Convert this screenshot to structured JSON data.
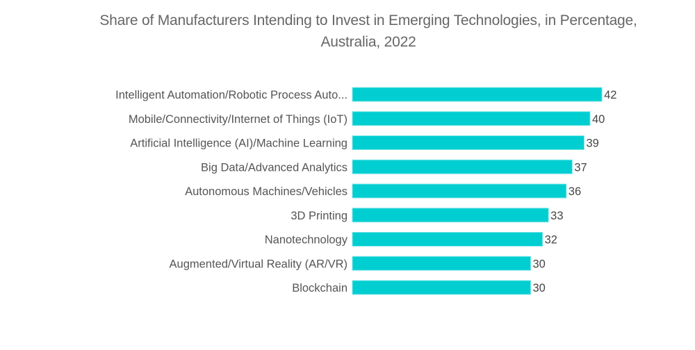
{
  "chart_data": {
    "type": "bar",
    "orientation": "horizontal",
    "title": "Share of Manufacturers Intending to Invest in Emerging Technologies, in Percentage, Australia, 2022",
    "title_lines": [
      "Share of Manufacturers Intending to Invest in Emerging Technologies, in Percentage,",
      "Australia, 2022"
    ],
    "categories": [
      "Intelligent Automation/Robotic Process Auto...",
      "Mobile/Connectivity/Internet of Things (IoT)",
      "Artificial Intelligence (AI)/Machine Learning",
      "Big Data/Advanced Analytics",
      "Autonomous Machines/Vehicles",
      "3D Printing",
      "Nanotechnology",
      "Augmented/Virtual Reality (AR/VR)",
      "Blockchain"
    ],
    "values": [
      42,
      40,
      39,
      37,
      36,
      33,
      32,
      30,
      30
    ],
    "xlabel": "",
    "ylabel": "",
    "xlim": [
      0,
      42
    ],
    "grid": false,
    "legend": "none",
    "data_labels": true,
    "bar_color": "#00CED1"
  }
}
